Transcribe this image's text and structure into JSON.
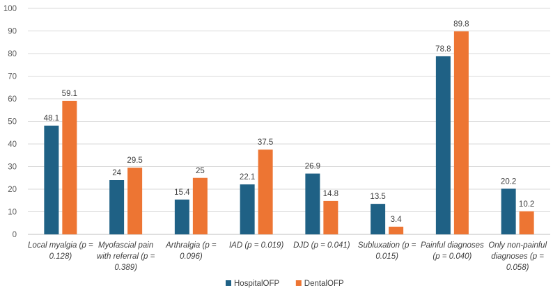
{
  "chart_data": {
    "type": "bar",
    "title": "",
    "xlabel": "",
    "ylabel": "",
    "ylim": [
      0,
      100
    ],
    "yticks": [
      0,
      10,
      20,
      30,
      40,
      50,
      60,
      70,
      80,
      90,
      100
    ],
    "grid": true,
    "legend_position": "bottom",
    "categories": [
      [
        "Local myalgia (p =",
        "0.128)"
      ],
      [
        "Myofascial pain",
        "with referral (p =",
        "0.389)"
      ],
      [
        "Arthralgia (p =",
        "0.096)"
      ],
      [
        "IAD (p = 0.019)"
      ],
      [
        "DJD (p = 0.041)"
      ],
      [
        "Subluxation (p =",
        "0.015)"
      ],
      [
        "Painful diagnoses",
        "(p = 0.040)"
      ],
      [
        "Only non-painful",
        "diagnoses (p =",
        "0.058)"
      ]
    ],
    "series": [
      {
        "name": "HospitalOFP",
        "color": "#1f6185",
        "values": [
          48.1,
          24,
          15.4,
          22.1,
          26.9,
          13.5,
          78.8,
          20.2
        ]
      },
      {
        "name": "DentalOFP",
        "color": "#ed7533",
        "values": [
          59.1,
          29.5,
          25,
          37.5,
          14.8,
          3.4,
          89.8,
          10.2
        ]
      }
    ]
  }
}
